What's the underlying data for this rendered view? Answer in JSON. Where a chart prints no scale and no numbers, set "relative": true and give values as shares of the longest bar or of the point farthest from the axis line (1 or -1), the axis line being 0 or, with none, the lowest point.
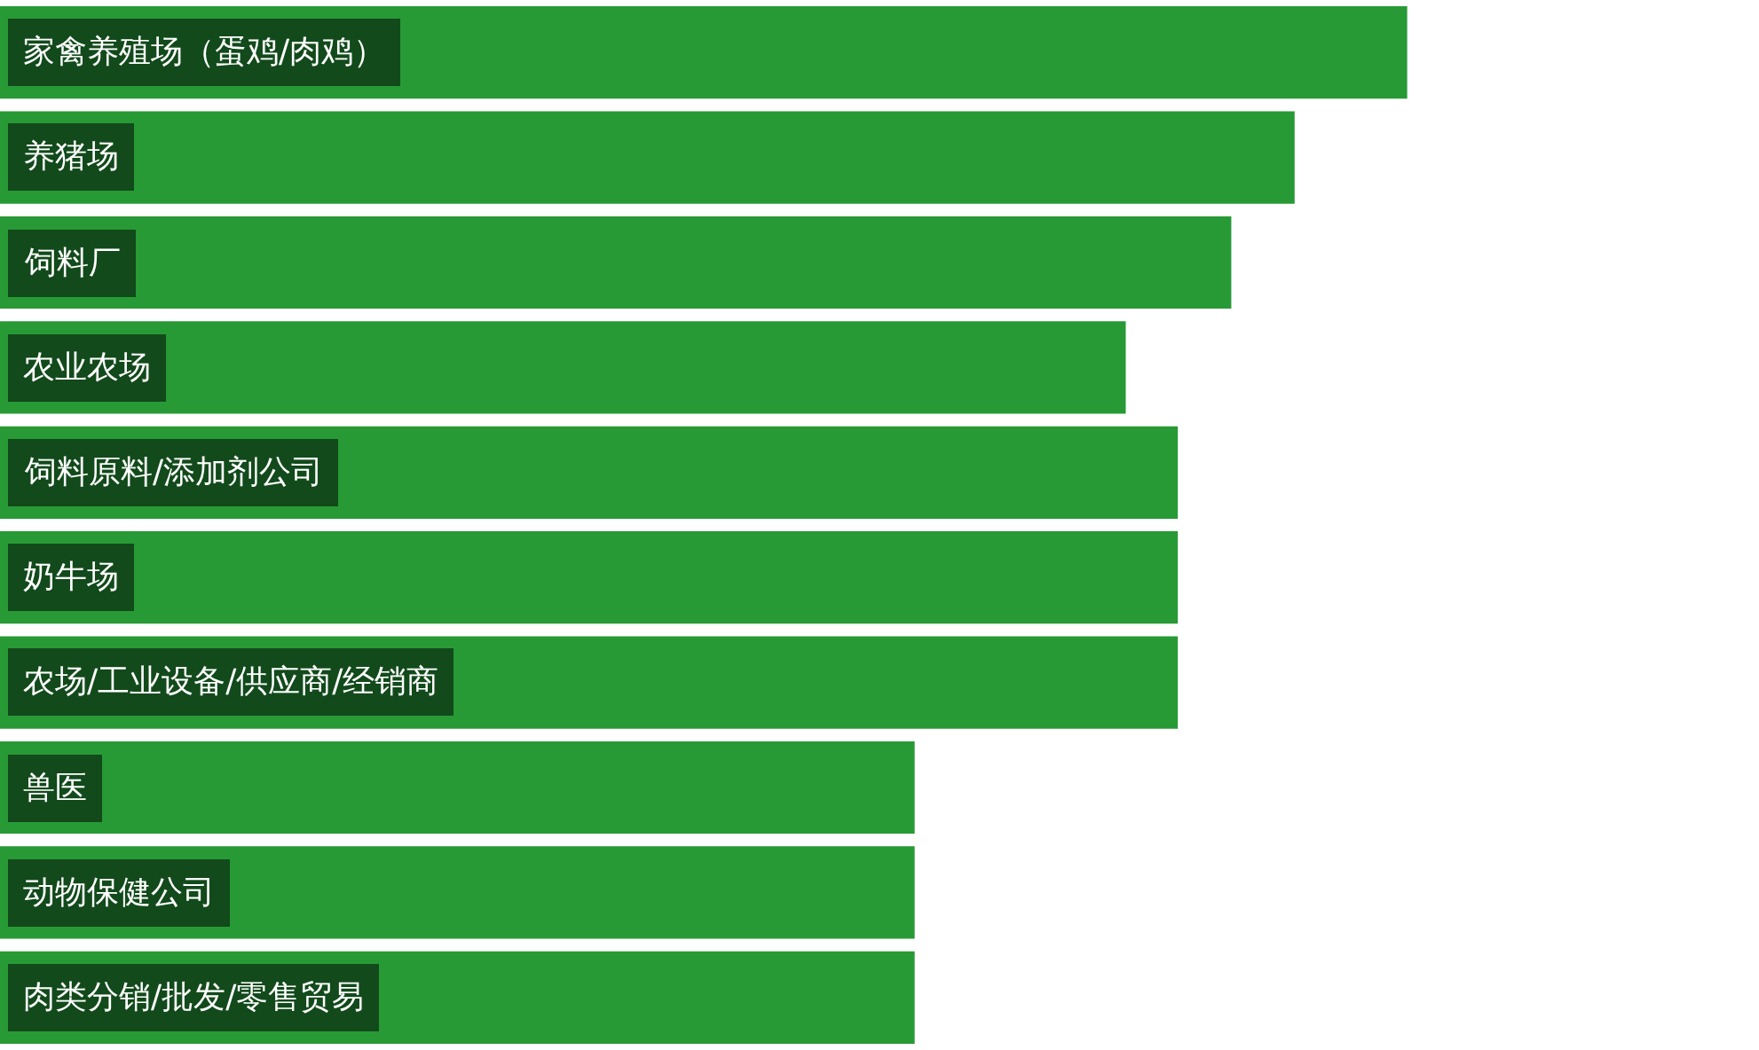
{
  "chart_data": {
    "type": "bar",
    "orientation": "horizontal",
    "relative": true,
    "categories": [
      "家禽养殖场（蛋鸡/肉鸡）",
      "养猪场",
      "饲料厂",
      "农业农场",
      "饲料原料/添加剂公司",
      "奶牛场",
      "农场/工业设备/供应商/经销商",
      "兽医",
      "动物保健公司",
      "肉类分销/批发/零售贸易"
    ],
    "values": [
      1,
      0.92,
      0.875,
      0.8,
      0.837,
      0.837,
      0.837,
      0.65,
      0.65,
      0.65
    ],
    "color": "#279a35"
  }
}
